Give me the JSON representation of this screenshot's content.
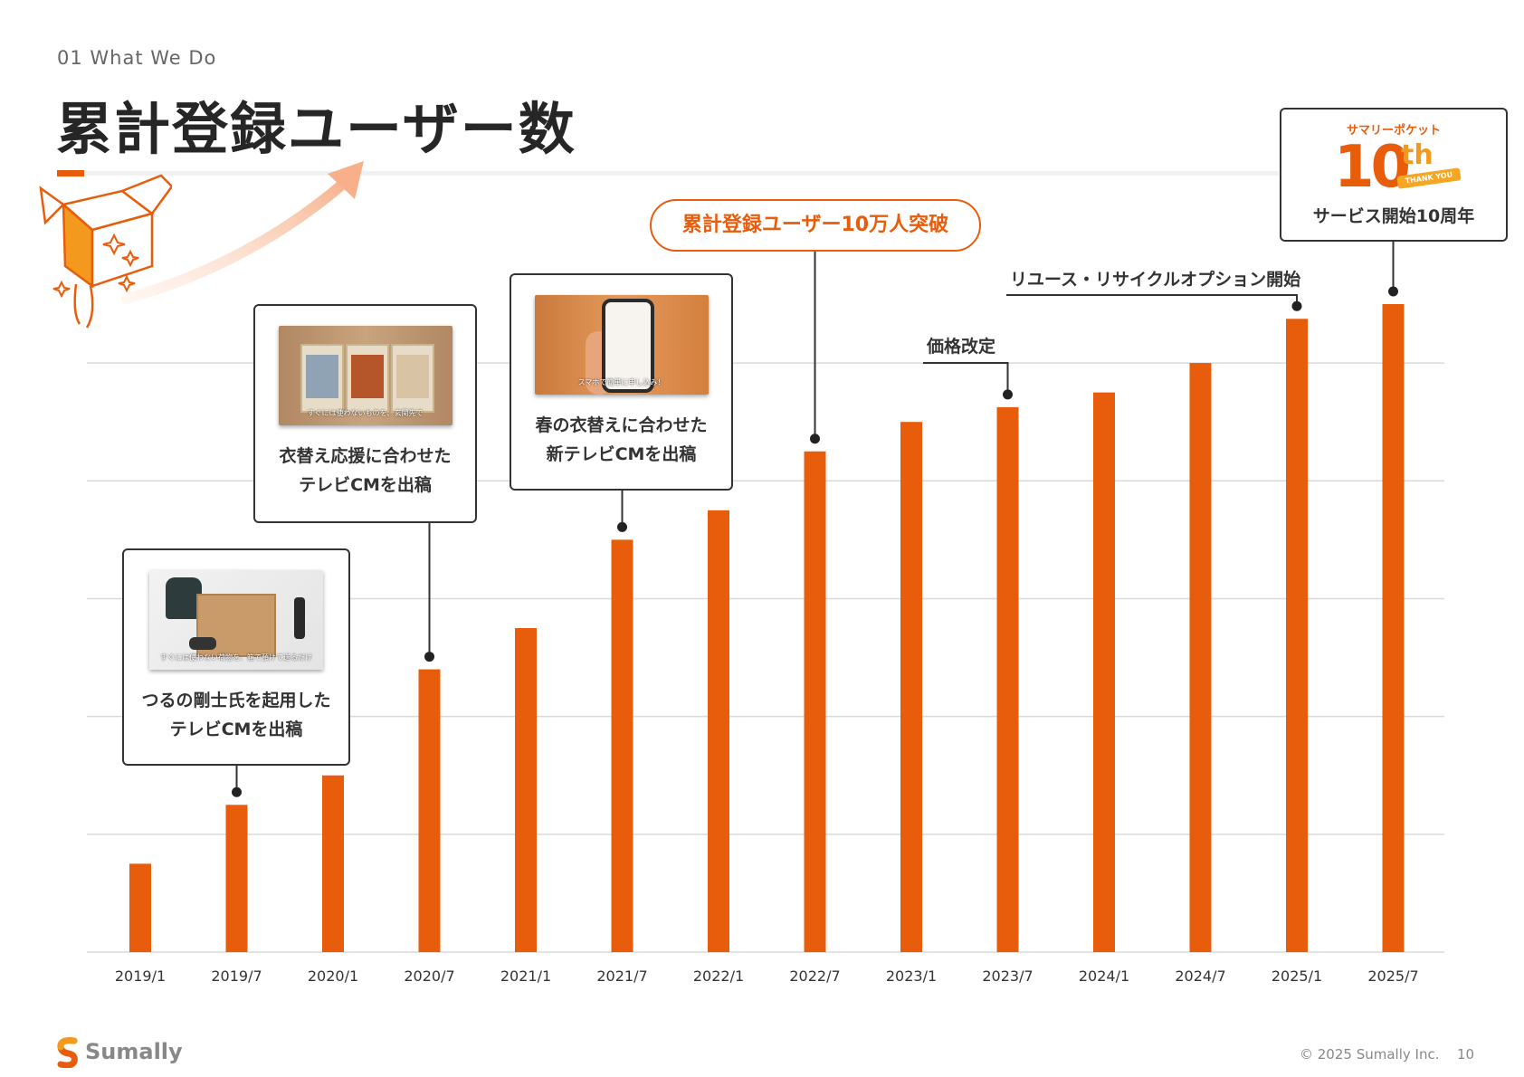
{
  "header": {
    "section_label": "01 What We Do",
    "title": "累計登録ユーザー数"
  },
  "colors": {
    "accent": "#e85d0c",
    "grid": "#d9d9d9",
    "text": "#333333"
  },
  "chart_data": {
    "type": "bar",
    "categories": [
      "2019/1",
      "2019/7",
      "2020/1",
      "2020/7",
      "2021/1",
      "2021/7",
      "2022/1",
      "2022/7",
      "2023/1",
      "2023/7",
      "2024/1",
      "2024/7",
      "2025/1",
      "2025/7"
    ],
    "values": [
      1.5,
      2.5,
      3.0,
      4.8,
      5.5,
      7.0,
      7.5,
      8.5,
      9.0,
      9.25,
      9.5,
      10.0,
      10.75,
      11.0
    ],
    "ylim": [
      0,
      11
    ],
    "y_gridlines": [
      0,
      2,
      4,
      6,
      8,
      10
    ],
    "y_axis_labels_shown": false,
    "grid": true,
    "legend": "none",
    "title": "",
    "xlabel": "",
    "ylabel": ""
  },
  "annotations": {
    "cm_2019": {
      "line1": "つるの剛士氏を起用した",
      "line2": "テレビCMを出稿",
      "thumb_caption": "すぐには使わない荷物を、箱で預けて送るだけ",
      "category": "2019/7"
    },
    "cm_2020": {
      "line1": "衣替え応援に合わせた",
      "line2": "テレビCMを出稿",
      "thumb_caption": "すぐには使わないものを、玄関先で",
      "category": "2020/7"
    },
    "cm_2021": {
      "line1": "春の衣替えに合わせた",
      "line2": "新テレビCMを出稿",
      "thumb_caption": "スマホで簡単に申し込み！",
      "category": "2021/7"
    },
    "milestone_100k": {
      "text": "累計登録ユーザー10万人突破",
      "category": "2022/7"
    },
    "price_revision": {
      "text": "価格改定",
      "category": "2023/7"
    },
    "reuse_option": {
      "text": "リユース・リサイクルオプション開始",
      "category": "2025/1"
    },
    "anniversary": {
      "brand": "サマリーポケット",
      "number": "10",
      "suffix": "th",
      "ribbon": "THANK YOU",
      "text": "サービス開始10周年",
      "category": "2025/7"
    }
  },
  "footer": {
    "brand": "Sumally",
    "copyright": "© 2025 Sumally Inc.",
    "page_number": "10"
  }
}
